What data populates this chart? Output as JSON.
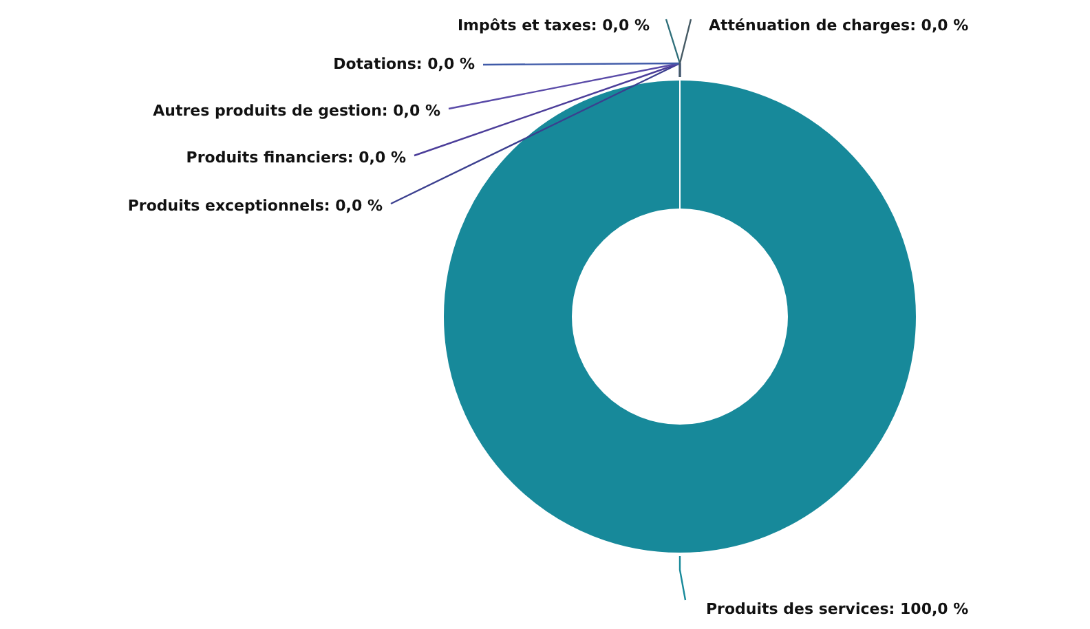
{
  "chart_data": {
    "type": "donut",
    "categories": [
      "Produits des services",
      "Produits exceptionnels",
      "Produits financiers",
      "Autres produits de gestion",
      "Dotations",
      "Impôts et taxes",
      "Atténuation de charges"
    ],
    "values": [
      100,
      0,
      0,
      0,
      0,
      0,
      0
    ],
    "value_labels": [
      ": 100,0 %",
      ": 0,0 %",
      ": 0,0 %",
      ": 0,0 %",
      ": 0,0 %",
      ": 0,0 %",
      ": 0,0 %"
    ],
    "colors": [
      "#17899a",
      "#3b3f8f",
      "#4b3d99",
      "#5a4ba8",
      "#3f5aa8",
      "#2f6f7a",
      "#455a64"
    ]
  }
}
